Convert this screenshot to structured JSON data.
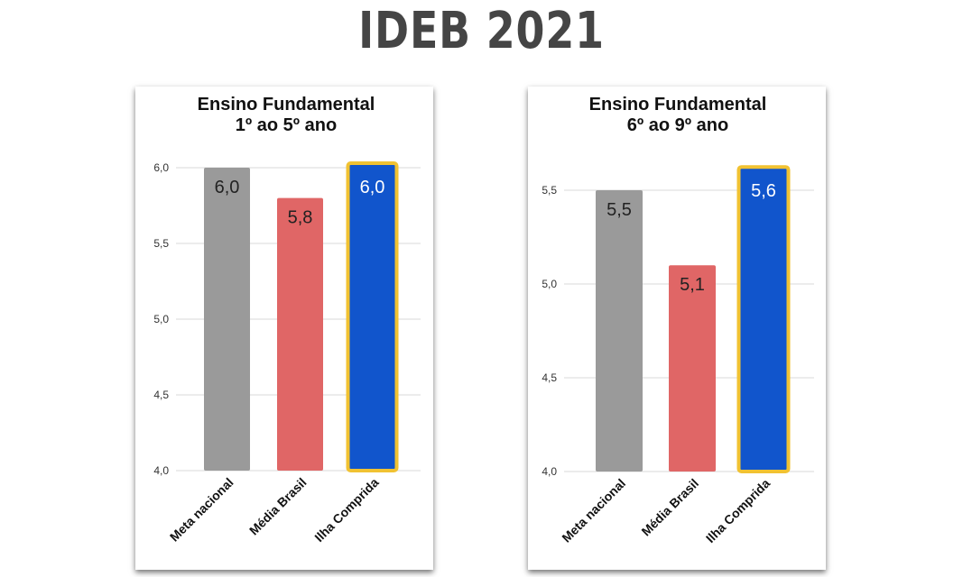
{
  "title": "IDEB 2021",
  "colors": {
    "meta": "#9a9a9a",
    "media": "#e06666",
    "ilha": "#1155cc",
    "highlight_border": "#f1c232"
  },
  "chart_data": [
    {
      "type": "bar",
      "title": [
        "Ensino Fundamental",
        "1º ao 5º ano"
      ],
      "categories": [
        "Meta nacional",
        "Média Brasil",
        "Ilha Comprida"
      ],
      "values": [
        6.0,
        5.8,
        6.0
      ],
      "data_labels": [
        "6,0",
        "5,8",
        "6,0"
      ],
      "ylim": [
        4.0,
        6.0
      ],
      "yticks": [
        4.0,
        4.5,
        5.0,
        5.5,
        6.0
      ],
      "ytick_labels": [
        "4,0",
        "4,5",
        "5,0",
        "5,5",
        "6,0"
      ],
      "grid": true,
      "highlighted": "Ilha Comprida"
    },
    {
      "type": "bar",
      "title": [
        "Ensino Fundamental",
        "6º ao 9º ano"
      ],
      "categories": [
        "Meta nacional",
        "Média Brasil",
        "Ilha Comprida"
      ],
      "values": [
        5.5,
        5.1,
        5.6
      ],
      "data_labels": [
        "5,5",
        "5,1",
        "5,6"
      ],
      "ylim": [
        4.0,
        5.5
      ],
      "yticks": [
        4.0,
        4.5,
        5.0,
        5.5
      ],
      "ytick_labels": [
        "4,0",
        "4,5",
        "5,0",
        "5,5"
      ],
      "grid": true,
      "highlighted": "Ilha Comprida"
    }
  ]
}
